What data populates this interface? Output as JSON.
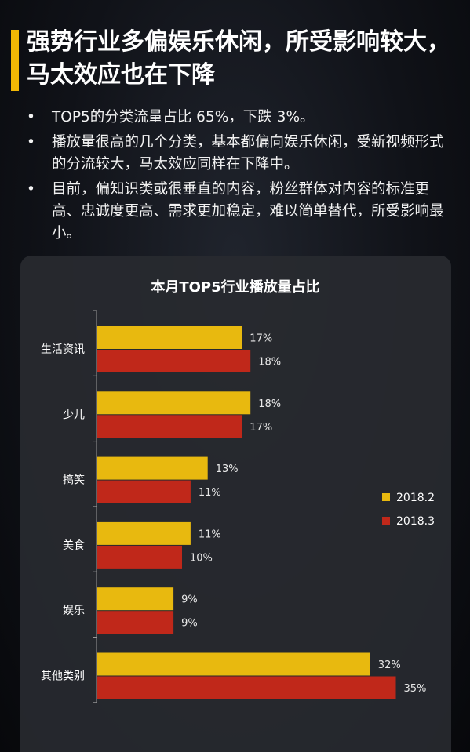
{
  "header": {
    "title": "强势行业多偏娱乐休闲，所受影响较大，马太效应也在下降",
    "accent_color": "#f2b705"
  },
  "bullets": [
    "TOP5的分类流量占比 65%，下跌 3%。",
    "播放量很高的几个分类，基本都偏向娱乐休闲，受新视频形式的分流较大，马太效应同样在下降中。",
    "目前，偏知识类或很垂直的内容，粉丝群体对内容的标准更高、忠诚度更高、需求更加稳定，难以简单替代，所受影响最小。"
  ],
  "bullet_glyph": "•",
  "chart_data": {
    "type": "bar",
    "orientation": "horizontal",
    "title": "本月TOP5行业播放量占比",
    "categories": [
      "生活资讯",
      "少儿",
      "搞笑",
      "美食",
      "娱乐",
      "其他类别"
    ],
    "series": [
      {
        "name": "2018.2",
        "color": "#e8b90f",
        "values": [
          17,
          18,
          13,
          11,
          9,
          32
        ],
        "labels": [
          "17%",
          "18%",
          "13%",
          "11%",
          "9%",
          "32%"
        ]
      },
      {
        "name": "2018.3",
        "color": "#c0281a",
        "values": [
          18,
          17,
          11,
          10,
          9,
          35
        ],
        "labels": [
          "18%",
          "17%",
          "11%",
          "10%",
          "9%",
          "35%"
        ]
      }
    ],
    "xlim": [
      0,
      40
    ],
    "grid": false,
    "legend_position": "right"
  }
}
